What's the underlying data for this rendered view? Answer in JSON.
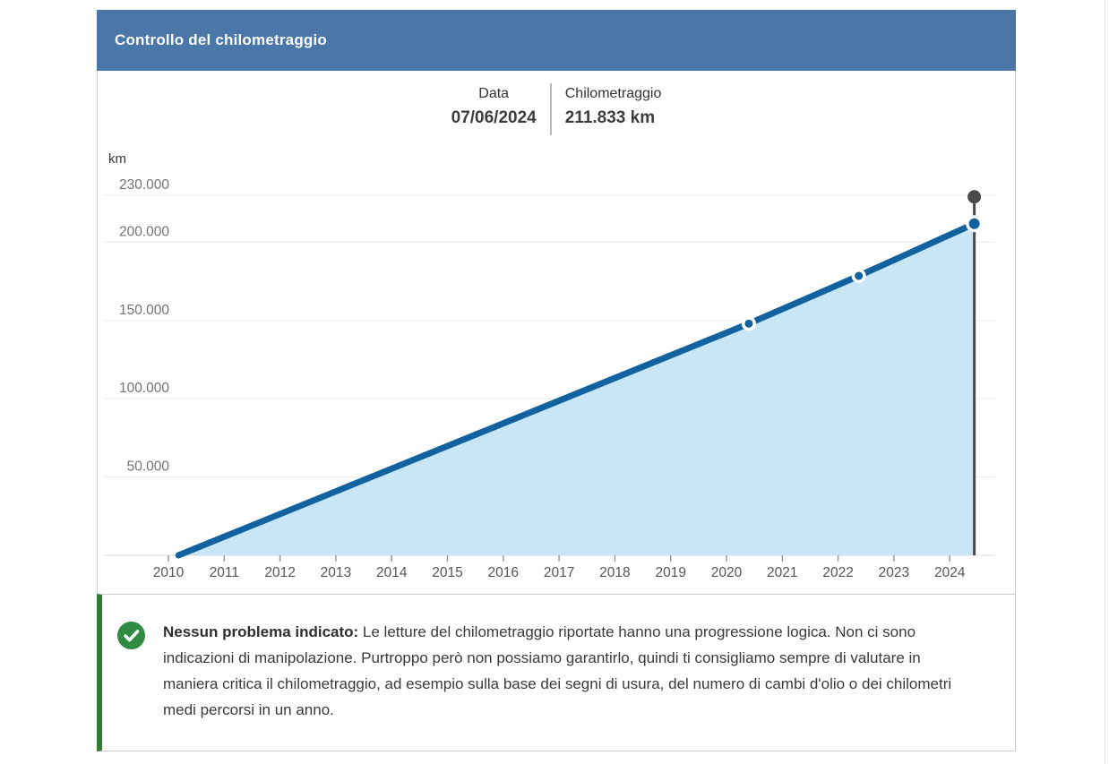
{
  "header": {
    "title": "Controllo del chilometraggio"
  },
  "tooltip": {
    "date_label": "Data",
    "date_value": "07/06/2024",
    "km_label": "Chilometraggio",
    "km_value": "211.833 km"
  },
  "chart_data": {
    "type": "area",
    "title": "Controllo del chilometraggio",
    "xlabel": "",
    "ylabel": "km",
    "xlim": [
      2009.85,
      2024.85
    ],
    "ylim": [
      0,
      263000
    ],
    "grid": "horizontal",
    "legend": "none",
    "y_ticks": [
      {
        "value": 230000,
        "label": "230.000"
      },
      {
        "value": 200000,
        "label": "200.000"
      },
      {
        "value": 150000,
        "label": "150.000"
      },
      {
        "value": 100000,
        "label": "100.000"
      },
      {
        "value": 50000,
        "label": "50.000"
      }
    ],
    "x_ticks": [
      {
        "value": 2010,
        "label": "2010"
      },
      {
        "value": 2011,
        "label": "2011"
      },
      {
        "value": 2012,
        "label": "2012"
      },
      {
        "value": 2013,
        "label": "2013"
      },
      {
        "value": 2014,
        "label": "2014"
      },
      {
        "value": 2015,
        "label": "2015"
      },
      {
        "value": 2016,
        "label": "2016"
      },
      {
        "value": 2017,
        "label": "2017"
      },
      {
        "value": 2018,
        "label": "2018"
      },
      {
        "value": 2019,
        "label": "2019"
      },
      {
        "value": 2020,
        "label": "2020"
      },
      {
        "value": 2021,
        "label": "2021"
      },
      {
        "value": 2022,
        "label": "2022"
      },
      {
        "value": 2023,
        "label": "2023"
      },
      {
        "value": 2024,
        "label": "2024"
      }
    ],
    "series": [
      {
        "name": "Chilometraggio",
        "points": [
          {
            "year": 2010.18,
            "km": 0,
            "dot": "none"
          },
          {
            "year": 2020.4,
            "km": 148000,
            "dot": "small"
          },
          {
            "year": 2022.37,
            "km": 178500,
            "dot": "small"
          },
          {
            "year": 2024.44,
            "km": 211833,
            "dot": "large"
          }
        ]
      }
    ],
    "cursor": {
      "year": 2024.44,
      "km": 211833,
      "date": "07/06/2024"
    }
  },
  "note": {
    "title": "Nessun problema indicato:",
    "body": " Le letture del chilometraggio riportate hanno una progressione logica. Non ci sono indicazioni di manipolazione. Purtroppo però non possiamo garantirlo, quindi ti consigliamo sempre di valutare in maniera critica il chilometraggio, ad esempio sulla base dei segni di usura, del numero di cambi d'olio o dei chilometri medi percorsi in un anno."
  },
  "colors": {
    "header_blue": "#4a77a8",
    "line_blue": "#1262a0",
    "area_fill": "#c9e6f6",
    "cursor_gray": "#4a4a4a",
    "green_accent": "#2f7d33",
    "icon_green": "#2e8b41",
    "gridline": "#e9e9e9",
    "axis_line": "#d8d8d8",
    "tick": "#9a9a9a",
    "tick_label": "#565656",
    "y_label": "#737373"
  }
}
